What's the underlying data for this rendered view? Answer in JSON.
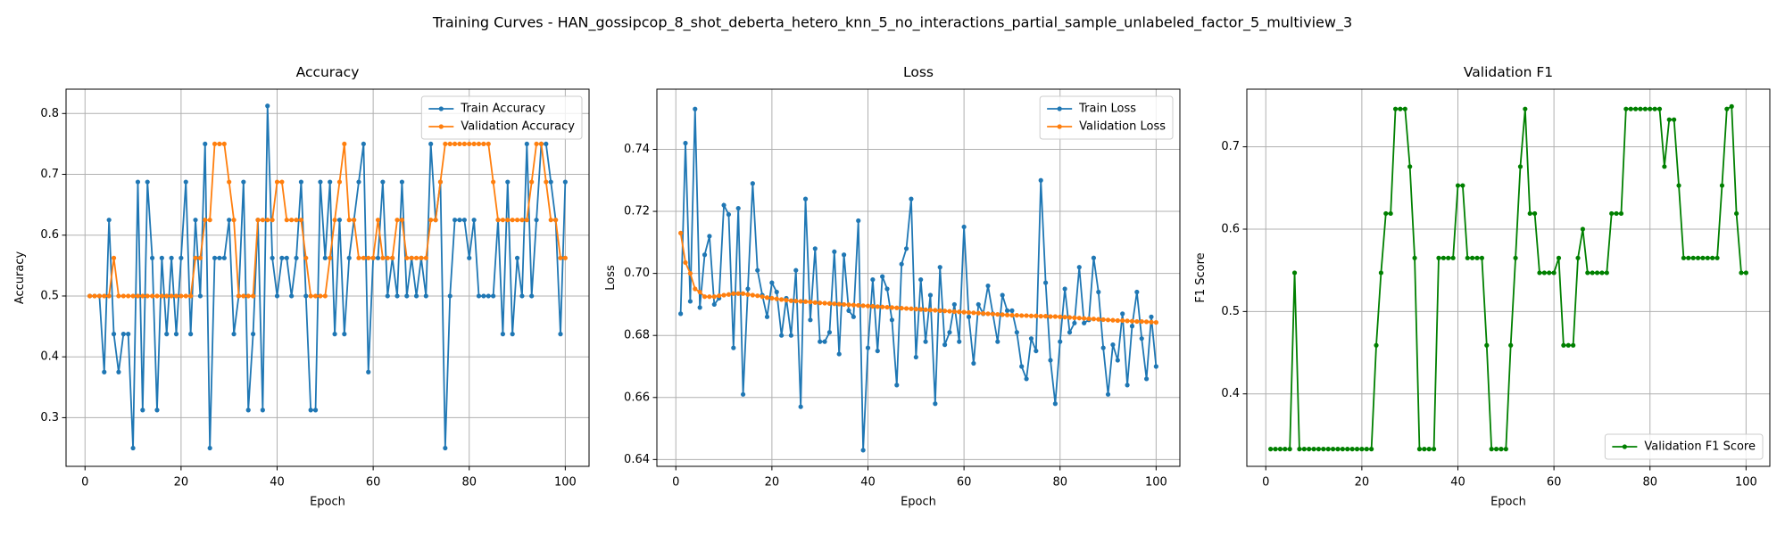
{
  "title": "Training Curves - HAN_gossipcop_8_shot_deberta_hetero_knn_5_no_interactions_partial_sample_unlabeled_factor_5_multiview_3",
  "chart_data": [
    {
      "type": "line",
      "title": "Accuracy",
      "xlabel": "Epoch",
      "ylabel": "Accuracy",
      "x": [
        1,
        2,
        3,
        4,
        5,
        6,
        7,
        8,
        9,
        10,
        11,
        12,
        13,
        14,
        15,
        16,
        17,
        18,
        19,
        20,
        21,
        22,
        23,
        24,
        25,
        26,
        27,
        28,
        29,
        30,
        31,
        32,
        33,
        34,
        35,
        36,
        37,
        38,
        39,
        40,
        41,
        42,
        43,
        44,
        45,
        46,
        47,
        48,
        49,
        50,
        51,
        52,
        53,
        54,
        55,
        56,
        57,
        58,
        59,
        60,
        61,
        62,
        63,
        64,
        65,
        66,
        67,
        68,
        69,
        70,
        71,
        72,
        73,
        74,
        75,
        76,
        77,
        78,
        79,
        80,
        81,
        82,
        83,
        84,
        85,
        86,
        87,
        88,
        89,
        90,
        91,
        92,
        93,
        94,
        95,
        96,
        97,
        98,
        99,
        100
      ],
      "series": [
        {
          "name": "Train Accuracy",
          "color": "#1f77b4",
          "values": [
            0.5,
            0.5,
            0.5,
            0.375,
            0.625,
            0.4375,
            0.375,
            0.4375,
            0.4375,
            0.25,
            0.6875,
            0.3125,
            0.6875,
            0.5625,
            0.3125,
            0.5625,
            0.4375,
            0.5625,
            0.4375,
            0.5625,
            0.6875,
            0.4375,
            0.625,
            0.5,
            0.75,
            0.25,
            0.5625,
            0.5625,
            0.5625,
            0.625,
            0.4375,
            0.5,
            0.6875,
            0.3125,
            0.4375,
            0.625,
            0.3125,
            0.8125,
            0.5625,
            0.5,
            0.5625,
            0.5625,
            0.5,
            0.5625,
            0.6875,
            0.5,
            0.3125,
            0.3125,
            0.6875,
            0.5625,
            0.6875,
            0.4375,
            0.625,
            0.4375,
            0.5625,
            0.625,
            0.6875,
            0.75,
            0.375,
            0.5625,
            0.5625,
            0.6875,
            0.5,
            0.5625,
            0.5,
            0.6875,
            0.5,
            0.5625,
            0.5,
            0.5625,
            0.5,
            0.75,
            0.625,
            0.6875,
            0.25,
            0.5,
            0.625,
            0.625,
            0.625,
            0.5625,
            0.625,
            0.5,
            0.5,
            0.5,
            0.5,
            0.625,
            0.4375,
            0.6875,
            0.4375,
            0.5625,
            0.5,
            0.75,
            0.5,
            0.625,
            0.75,
            0.75,
            0.6875,
            0.625,
            0.4375,
            0.6875
          ]
        },
        {
          "name": "Validation Accuracy",
          "color": "#ff7f0e",
          "values": [
            0.5,
            0.5,
            0.5,
            0.5,
            0.5,
            0.5625,
            0.5,
            0.5,
            0.5,
            0.5,
            0.5,
            0.5,
            0.5,
            0.5,
            0.5,
            0.5,
            0.5,
            0.5,
            0.5,
            0.5,
            0.5,
            0.5,
            0.5625,
            0.5625,
            0.625,
            0.625,
            0.75,
            0.75,
            0.75,
            0.6875,
            0.625,
            0.5,
            0.5,
            0.5,
            0.5,
            0.625,
            0.625,
            0.625,
            0.625,
            0.6875,
            0.6875,
            0.625,
            0.625,
            0.625,
            0.625,
            0.5625,
            0.5,
            0.5,
            0.5,
            0.5,
            0.5625,
            0.625,
            0.6875,
            0.75,
            0.625,
            0.625,
            0.5625,
            0.5625,
            0.5625,
            0.5625,
            0.625,
            0.5625,
            0.5625,
            0.5625,
            0.625,
            0.625,
            0.5625,
            0.5625,
            0.5625,
            0.5625,
            0.5625,
            0.625,
            0.625,
            0.6875,
            0.75,
            0.75,
            0.75,
            0.75,
            0.75,
            0.75,
            0.75,
            0.75,
            0.75,
            0.75,
            0.6875,
            0.625,
            0.625,
            0.625,
            0.625,
            0.625,
            0.625,
            0.625,
            0.6875,
            0.75,
            0.75,
            0.6875,
            0.625,
            0.625,
            0.5625,
            0.5625
          ]
        }
      ],
      "xlim": [
        -3.95,
        104.95
      ],
      "ylim": [
        0.22,
        0.84
      ],
      "xticks": [
        0,
        20,
        40,
        60,
        80,
        100
      ],
      "yticks": [
        0.3,
        0.4,
        0.5,
        0.6,
        0.7,
        0.8
      ],
      "grid": true,
      "legend": "upper right"
    },
    {
      "type": "line",
      "title": "Loss",
      "xlabel": "Epoch",
      "ylabel": "Loss",
      "x": [
        1,
        2,
        3,
        4,
        5,
        6,
        7,
        8,
        9,
        10,
        11,
        12,
        13,
        14,
        15,
        16,
        17,
        18,
        19,
        20,
        21,
        22,
        23,
        24,
        25,
        26,
        27,
        28,
        29,
        30,
        31,
        32,
        33,
        34,
        35,
        36,
        37,
        38,
        39,
        40,
        41,
        42,
        43,
        44,
        45,
        46,
        47,
        48,
        49,
        50,
        51,
        52,
        53,
        54,
        55,
        56,
        57,
        58,
        59,
        60,
        61,
        62,
        63,
        64,
        65,
        66,
        67,
        68,
        69,
        70,
        71,
        72,
        73,
        74,
        75,
        76,
        77,
        78,
        79,
        80,
        81,
        82,
        83,
        84,
        85,
        86,
        87,
        88,
        89,
        90,
        91,
        92,
        93,
        94,
        95,
        96,
        97,
        98,
        99,
        100
      ],
      "series": [
        {
          "name": "Train Loss",
          "color": "#1f77b4",
          "values": [
            0.687,
            0.742,
            0.691,
            0.753,
            0.689,
            0.706,
            0.712,
            0.69,
            0.692,
            0.722,
            0.719,
            0.676,
            0.721,
            0.661,
            0.695,
            0.729,
            0.701,
            0.693,
            0.686,
            0.697,
            0.694,
            0.68,
            0.692,
            0.68,
            0.701,
            0.657,
            0.724,
            0.685,
            0.708,
            0.678,
            0.678,
            0.681,
            0.707,
            0.674,
            0.706,
            0.688,
            0.686,
            0.717,
            0.643,
            0.676,
            0.698,
            0.675,
            0.699,
            0.695,
            0.685,
            0.664,
            0.703,
            0.708,
            0.724,
            0.673,
            0.698,
            0.678,
            0.693,
            0.658,
            0.702,
            0.677,
            0.681,
            0.69,
            0.678,
            0.715,
            0.686,
            0.671,
            0.69,
            0.687,
            0.696,
            0.687,
            0.678,
            0.693,
            0.688,
            0.688,
            0.681,
            0.67,
            0.666,
            0.679,
            0.675,
            0.73,
            0.697,
            0.672,
            0.658,
            0.678,
            0.695,
            0.681,
            0.684,
            0.702,
            0.684,
            0.685,
            0.705,
            0.694,
            0.676,
            0.661,
            0.677,
            0.672,
            0.687,
            0.664,
            0.683,
            0.694,
            0.679,
            0.666,
            0.686,
            0.67
          ]
        },
        {
          "name": "Validation Loss",
          "color": "#ff7f0e",
          "values": [
            0.713,
            0.7035,
            0.7,
            0.695,
            0.694,
            0.6925,
            0.6925,
            0.6925,
            0.6928,
            0.693,
            0.6932,
            0.6935,
            0.6935,
            0.6935,
            0.6932,
            0.693,
            0.6928,
            0.6925,
            0.6922,
            0.692,
            0.6918,
            0.6916,
            0.6914,
            0.6912,
            0.6911,
            0.691,
            0.6909,
            0.6908,
            0.6906,
            0.6905,
            0.6904,
            0.6903,
            0.6902,
            0.6901,
            0.69,
            0.6899,
            0.6898,
            0.6897,
            0.6896,
            0.6895,
            0.6894,
            0.6893,
            0.6892,
            0.6891,
            0.689,
            0.6889,
            0.6888,
            0.6887,
            0.6886,
            0.6885,
            0.6884,
            0.6883,
            0.6882,
            0.6881,
            0.688,
            0.6879,
            0.6878,
            0.6877,
            0.6876,
            0.6875,
            0.6874,
            0.6873,
            0.6872,
            0.6871,
            0.687,
            0.6869,
            0.6868,
            0.6867,
            0.6866,
            0.6865,
            0.6865,
            0.6864,
            0.6864,
            0.6863,
            0.6863,
            0.6862,
            0.6862,
            0.6861,
            0.6861,
            0.686,
            0.6859,
            0.6858,
            0.6857,
            0.6856,
            0.6855,
            0.6854,
            0.6853,
            0.6852,
            0.6851,
            0.685,
            0.6849,
            0.6848,
            0.6848,
            0.6847,
            0.6846,
            0.6845,
            0.6845,
            0.6844,
            0.6843,
            0.6842
          ]
        }
      ],
      "xlim": [
        -3.95,
        104.95
      ],
      "ylim": [
        0.6378,
        0.7594
      ],
      "xticks": [
        0,
        20,
        40,
        60,
        80,
        100
      ],
      "yticks": [
        0.64,
        0.66,
        0.68,
        {
          "value": 0.7,
          "label": "0.70"
        },
        0.72,
        0.74
      ],
      "grid": true,
      "legend": "upper right"
    },
    {
      "type": "line",
      "title": "Validation F1",
      "xlabel": "Epoch",
      "ylabel": "F1 Score",
      "x": [
        1,
        2,
        3,
        4,
        5,
        6,
        7,
        8,
        9,
        10,
        11,
        12,
        13,
        14,
        15,
        16,
        17,
        18,
        19,
        20,
        21,
        22,
        23,
        24,
        25,
        26,
        27,
        28,
        29,
        30,
        31,
        32,
        33,
        34,
        35,
        36,
        37,
        38,
        39,
        40,
        41,
        42,
        43,
        44,
        45,
        46,
        47,
        48,
        49,
        50,
        51,
        52,
        53,
        54,
        55,
        56,
        57,
        58,
        59,
        60,
        61,
        62,
        63,
        64,
        65,
        66,
        67,
        68,
        69,
        70,
        71,
        72,
        73,
        74,
        75,
        76,
        77,
        78,
        79,
        80,
        81,
        82,
        83,
        84,
        85,
        86,
        87,
        88,
        89,
        90,
        91,
        92,
        93,
        94,
        95,
        96,
        97,
        98,
        99,
        100
      ],
      "series": [
        {
          "name": "Validation F1 Score",
          "color": "#008000",
          "values": [
            0.333,
            0.333,
            0.333,
            0.333,
            0.333,
            0.547,
            0.333,
            0.333,
            0.333,
            0.333,
            0.333,
            0.333,
            0.333,
            0.333,
            0.333,
            0.333,
            0.333,
            0.333,
            0.333,
            0.333,
            0.333,
            0.333,
            0.459,
            0.547,
            0.619,
            0.619,
            0.746,
            0.746,
            0.746,
            0.676,
            0.565,
            0.333,
            0.333,
            0.333,
            0.333,
            0.565,
            0.565,
            0.565,
            0.565,
            0.653,
            0.653,
            0.565,
            0.565,
            0.565,
            0.565,
            0.459,
            0.333,
            0.333,
            0.333,
            0.333,
            0.459,
            0.565,
            0.676,
            0.746,
            0.619,
            0.619,
            0.547,
            0.547,
            0.547,
            0.547,
            0.565,
            0.459,
            0.459,
            0.459,
            0.565,
            0.6,
            0.547,
            0.547,
            0.547,
            0.547,
            0.547,
            0.619,
            0.619,
            0.619,
            0.746,
            0.746,
            0.746,
            0.746,
            0.746,
            0.746,
            0.746,
            0.746,
            0.676,
            0.733,
            0.733,
            0.653,
            0.565,
            0.565,
            0.565,
            0.565,
            0.565,
            0.565,
            0.565,
            0.565,
            0.653,
            0.746,
            0.749,
            0.619,
            0.547,
            0.547
          ]
        }
      ],
      "xlim": [
        -3.95,
        104.95
      ],
      "ylim": [
        0.312,
        0.77
      ],
      "xticks": [
        0,
        20,
        40,
        60,
        80,
        100
      ],
      "yticks": [
        0.4,
        0.5,
        0.6,
        0.7
      ],
      "grid": true,
      "legend": "lower right"
    }
  ]
}
